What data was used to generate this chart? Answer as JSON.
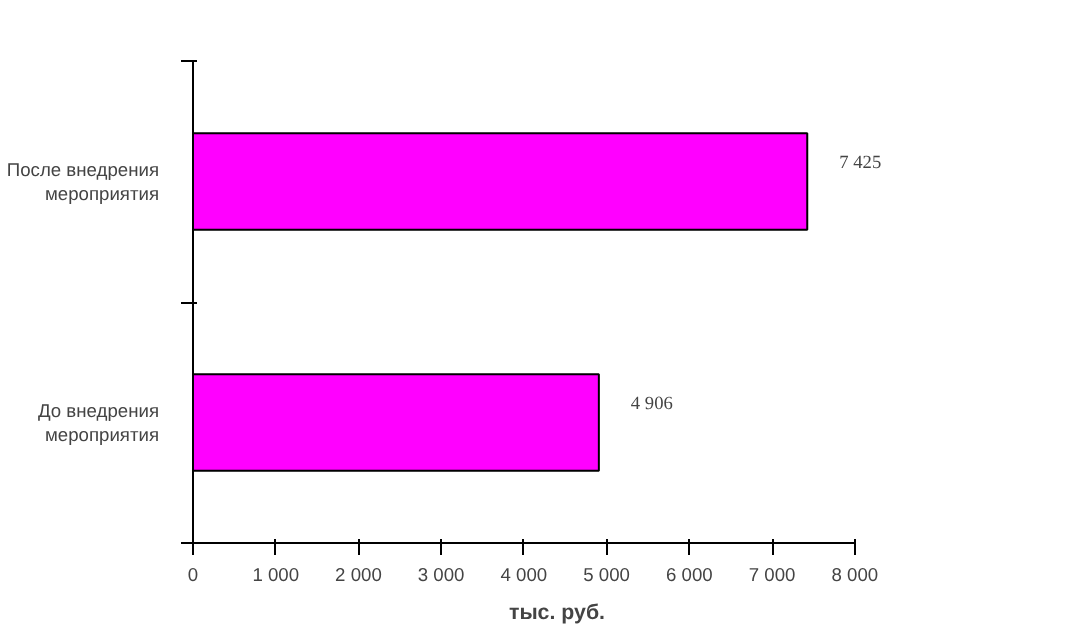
{
  "chart_data": {
    "type": "bar",
    "orientation": "horizontal",
    "categories": [
      "После внедрения мероприятия",
      "До внедрения мероприятия"
    ],
    "values": [
      7425,
      4906
    ],
    "value_labels": [
      "7 425",
      "4 906"
    ],
    "color": "#ff00ff",
    "xlabel": "тыс. руб.",
    "xlim": [
      0,
      8000
    ],
    "xticks": [
      0,
      {
        "value": 1000,
        "label": "1 000"
      },
      {
        "value": 2000,
        "label": "2 000"
      },
      {
        "value": 3000,
        "label": "3 000"
      },
      {
        "value": 4000,
        "label": "4 000"
      },
      {
        "value": 5000,
        "label": "5 000"
      },
      {
        "value": 6000,
        "label": "6 000"
      },
      {
        "value": 7000,
        "label": "7 000"
      },
      {
        "value": 8000,
        "label": "8 000"
      }
    ],
    "grid": false
  }
}
